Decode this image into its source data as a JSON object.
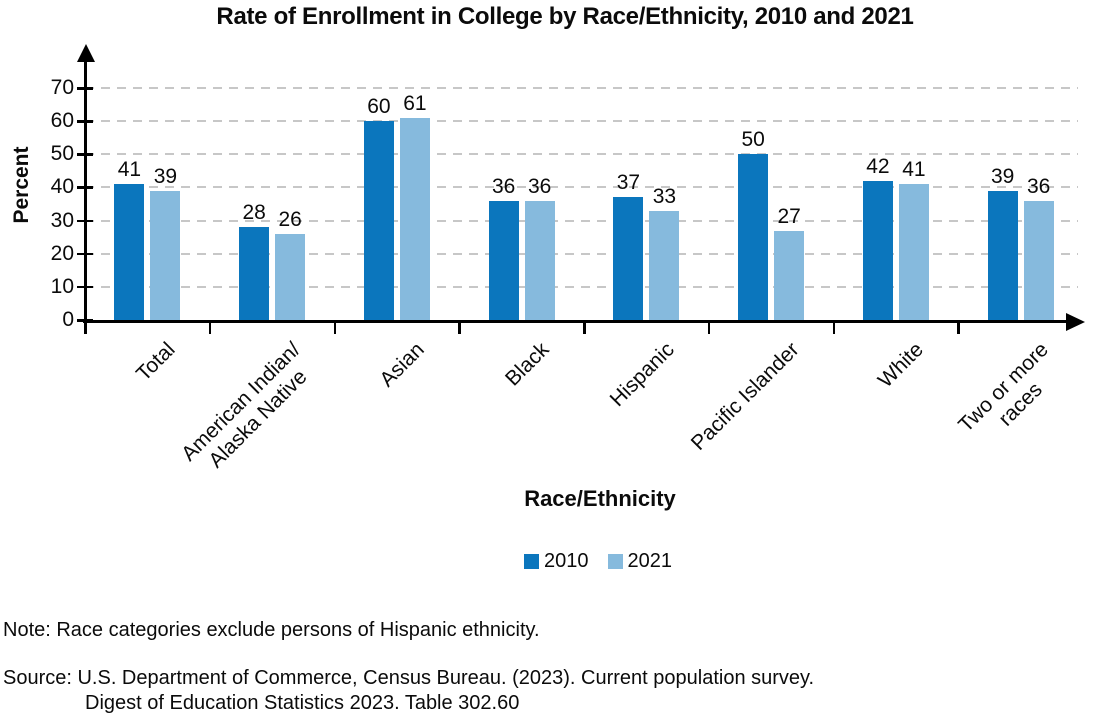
{
  "chart_data": {
    "type": "bar",
    "title": "Rate of Enrollment in College by Race/Ethnicity, 2010 and 2021",
    "xlabel": "Race/Ethnicity",
    "ylabel": "Percent",
    "categories": [
      "Total",
      "American Indian/\nAlaska Native",
      "Asian",
      "Black",
      "Hispanic",
      "Pacific Islander",
      "White",
      "Two or more\nraces"
    ],
    "series": [
      {
        "name": "2010",
        "color": "#0b76bd",
        "values": [
          41,
          28,
          60,
          36,
          37,
          50,
          42,
          39
        ]
      },
      {
        "name": "2021",
        "color": "#86badd",
        "values": [
          39,
          26,
          61,
          36,
          33,
          27,
          41,
          36
        ]
      }
    ],
    "ylim": [
      0,
      70
    ],
    "yticks": [
      0,
      10,
      20,
      30,
      40,
      50,
      60,
      70
    ],
    "grid": "horizontal-dashed",
    "gridline_color": "#c7c7c7",
    "legend_position": "bottom-center",
    "bar_value_labels_shown": true
  },
  "notes": {
    "note": "Note: Race categories exclude persons of Hispanic ethnicity.",
    "source_line1": "Source: U.S. Department of Commerce, Census Bureau. (2023). Current population survey.",
    "source_line2": "Digest of Education Statistics 2023. Table 302.60"
  }
}
